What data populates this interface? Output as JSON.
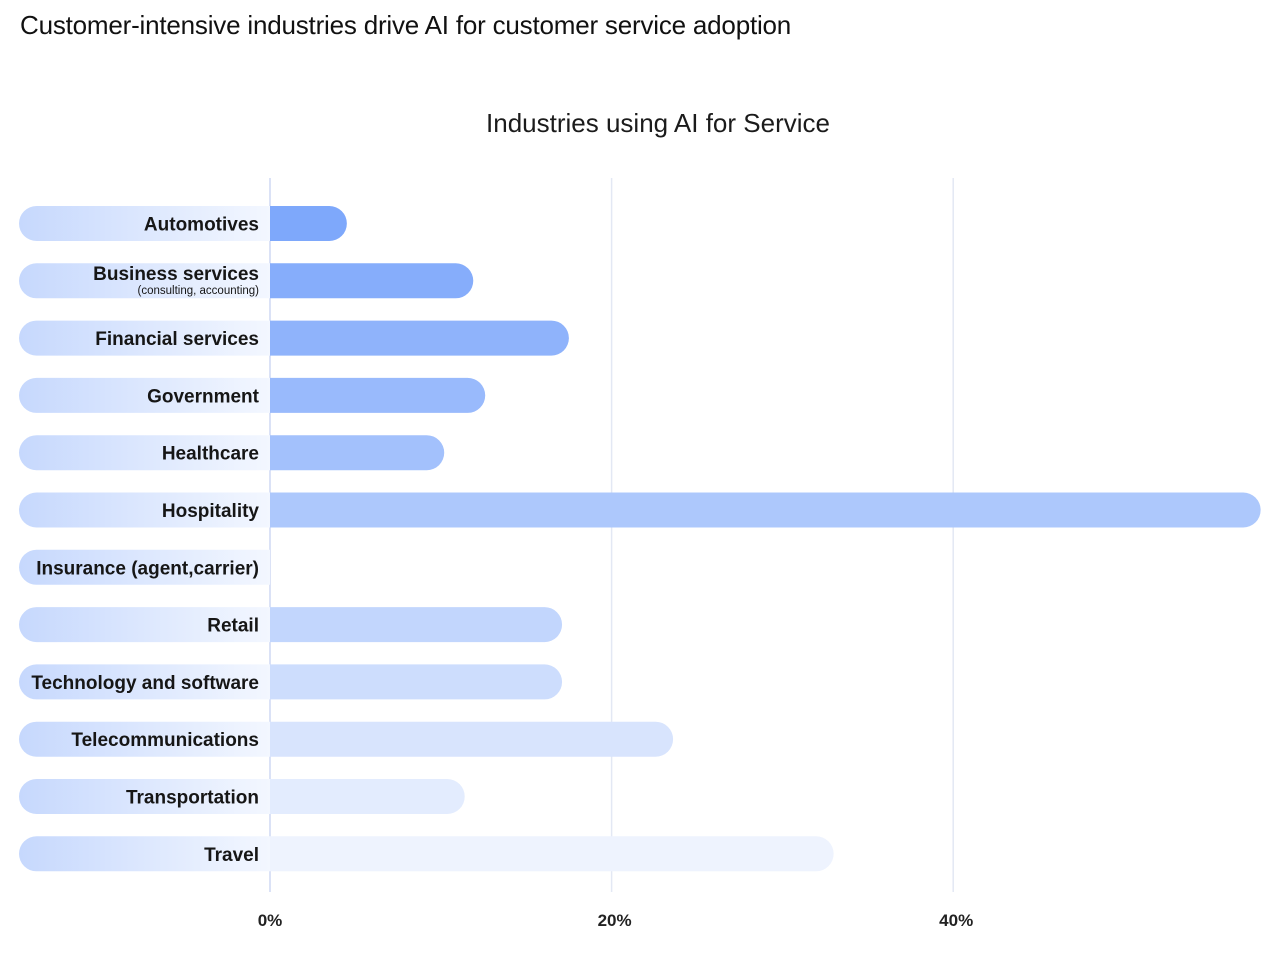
{
  "page": {
    "heading": "Customer-intensive industries drive AI for customer service adoption"
  },
  "colors": {
    "bar_strong": "#7ea8fb",
    "bar_faint": "#eef3fe",
    "label_pill": "#c6d8fd",
    "gridline": "#e3e8f4"
  },
  "chart_data": {
    "type": "bar",
    "orientation": "horizontal",
    "title": "Industries using AI for Service",
    "xlabel": "",
    "ylabel": "",
    "xlim": [
      0,
      58
    ],
    "grid": true,
    "xticks": [
      {
        "value": 0,
        "label": "0%"
      },
      {
        "value": 20,
        "label": "20%"
      },
      {
        "value": 40,
        "label": "40%"
      }
    ],
    "categories": [
      {
        "label": "Automotives",
        "sublabel": "",
        "value": 4.5
      },
      {
        "label": "Business services",
        "sublabel": "(consulting, accounting)",
        "value": 11.9
      },
      {
        "label": "Financial services",
        "sublabel": "",
        "value": 17.5
      },
      {
        "label": "Government",
        "sublabel": "",
        "value": 12.6
      },
      {
        "label": "Healthcare",
        "sublabel": "",
        "value": 10.2
      },
      {
        "label": "Hospitality",
        "sublabel": "",
        "value": 58.0
      },
      {
        "label": "Insurance (agent,carrier)",
        "sublabel": "",
        "value": 0
      },
      {
        "label": "Retail",
        "sublabel": "",
        "value": 17.1
      },
      {
        "label": "Technology and software",
        "sublabel": "",
        "value": 17.1
      },
      {
        "label": "Telecommunications",
        "sublabel": "",
        "value": 23.6
      },
      {
        "label": "Transportation",
        "sublabel": "",
        "value": 11.4
      },
      {
        "label": "Travel",
        "sublabel": "",
        "value": 33.0
      }
    ]
  }
}
